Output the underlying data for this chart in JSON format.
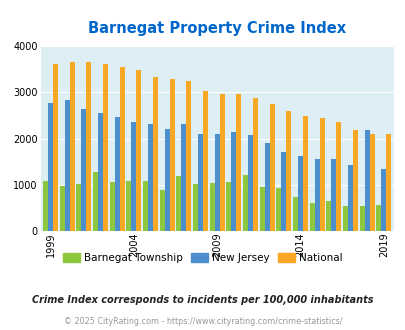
{
  "title": "Barnegat Property Crime Index",
  "title_color": "#0066cc",
  "years": [
    1999,
    2000,
    2001,
    2002,
    2003,
    2004,
    2005,
    2006,
    2007,
    2008,
    2009,
    2010,
    2011,
    2012,
    2013,
    2014,
    2015,
    2016,
    2017,
    2018,
    2019
  ],
  "barnegat": [
    1075,
    975,
    1020,
    1270,
    1050,
    1080,
    1090,
    880,
    1180,
    1020,
    1040,
    1050,
    1220,
    960,
    940,
    740,
    600,
    640,
    540,
    540,
    560
  ],
  "new_jersey": [
    2780,
    2840,
    2650,
    2560,
    2460,
    2370,
    2310,
    2210,
    2310,
    2090,
    2090,
    2140,
    2080,
    1910,
    1710,
    1620,
    1560,
    1550,
    1430,
    2180,
    1350
  ],
  "national": [
    3620,
    3660,
    3650,
    3610,
    3540,
    3480,
    3340,
    3300,
    3240,
    3020,
    2960,
    2960,
    2880,
    2750,
    2600,
    2490,
    2450,
    2360,
    2180,
    2100,
    2090
  ],
  "barnegat_color": "#8dc63f",
  "nj_color": "#4d8fcc",
  "national_color": "#f9a825",
  "bg_color": "#deeef5",
  "ylim": [
    0,
    4000
  ],
  "yticks": [
    0,
    1000,
    2000,
    3000,
    4000
  ],
  "xtick_years": [
    1999,
    2004,
    2009,
    2014,
    2019
  ],
  "footnote": "Crime Index corresponds to incidents per 100,000 inhabitants",
  "footnote2": "© 2025 CityRating.com - https://www.cityrating.com/crime-statistics/",
  "legend_labels": [
    "Barnegat Township",
    "New Jersey",
    "National"
  ]
}
